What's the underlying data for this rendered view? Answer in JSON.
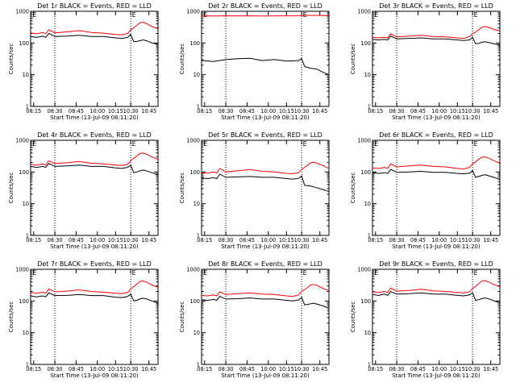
{
  "chart_data": [
    {
      "type": "line",
      "title": "Det 1r BLACK = Events, RED = LLD",
      "xlabel": "Start Time (13-Jul-09 08:11:20)",
      "ylabel": "Counts/sec",
      "scale": "log",
      "ylim": [
        1,
        1000
      ],
      "y_ticks": [
        "1",
        "10",
        "100",
        "1000"
      ],
      "x_ticks": [
        "08:15",
        "08:30",
        "08:45",
        "10:00",
        "10:15",
        "10:30",
        "10:45"
      ],
      "markers": [
        "E",
        "E"
      ],
      "vlines": [
        8,
        33
      ],
      "series": [
        {
          "name": "BLACK = Events",
          "color": "#000000",
          "x": [
            0,
            2,
            4,
            5,
            6,
            8,
            12,
            16,
            20,
            24,
            28,
            30,
            32,
            33,
            34,
            35,
            36,
            37,
            38,
            40,
            42
          ],
          "y": [
            160,
            150,
            165,
            150,
            200,
            160,
            165,
            175,
            160,
            160,
            145,
            140,
            150,
            185,
            110,
            112,
            118,
            125,
            120,
            100,
            90
          ]
        },
        {
          "name": "RED = LLD",
          "color": "#ff0000",
          "x": [
            0,
            2,
            4,
            5,
            6,
            8,
            12,
            16,
            20,
            24,
            28,
            30,
            32,
            33,
            34,
            35,
            36,
            37,
            38,
            40,
            42
          ],
          "y": [
            210,
            195,
            215,
            195,
            260,
            210,
            225,
            245,
            215,
            205,
            185,
            180,
            200,
            260,
            300,
            360,
            430,
            450,
            420,
            330,
            280
          ]
        }
      ]
    },
    {
      "type": "line",
      "title": "Det 2r BLACK = Events, RED = LLD",
      "xlabel": "Start Time (13-Jul-09 08:11:20)",
      "ylabel": "Counts/sec",
      "scale": "log",
      "ylim": [
        1,
        1000
      ],
      "y_ticks": [
        "1",
        "10",
        "100",
        "1000"
      ],
      "x_ticks": [
        "08:15",
        "08:30",
        "08:45",
        "10:00",
        "10:15",
        "10:30",
        "10:45"
      ],
      "markers": [
        "E",
        "E"
      ],
      "vlines": [
        8,
        33
      ],
      "series": [
        {
          "name": "BLACK = Events",
          "color": "#000000",
          "x": [
            0,
            4,
            8,
            12,
            16,
            20,
            24,
            28,
            32,
            33,
            34,
            36,
            38,
            40,
            42
          ],
          "y": [
            28,
            26,
            30,
            32,
            33,
            28,
            30,
            27,
            28,
            32,
            18,
            16,
            15,
            12,
            10
          ]
        },
        {
          "name": "RED = LLD",
          "color": "#ff0000",
          "x": [
            0,
            4,
            8,
            12,
            16,
            20,
            24,
            28,
            32,
            33,
            34,
            36,
            38,
            40,
            42
          ],
          "y": [
            720,
            710,
            720,
            715,
            720,
            710,
            715,
            720,
            720,
            730,
            740,
            745,
            740,
            735,
            730
          ]
        }
      ]
    },
    {
      "type": "line",
      "title": "Det 3r BLACK = Events, RED = LLD",
      "xlabel": "Start Time (13-Jul-09 08:11:20)",
      "ylabel": "Counts/sec",
      "scale": "log",
      "ylim": [
        1,
        1000
      ],
      "y_ticks": [
        "1",
        "10",
        "100",
        "1000"
      ],
      "x_ticks": [
        "08:15",
        "08:30",
        "08:45",
        "10:00",
        "10:15",
        "10:30",
        "10:45"
      ],
      "markers": [
        "E",
        "E"
      ],
      "vlines": [
        8,
        33
      ],
      "series": [
        {
          "name": "BLACK = Events",
          "color": "#000000",
          "x": [
            0,
            2,
            4,
            5,
            6,
            8,
            12,
            16,
            20,
            24,
            28,
            30,
            32,
            33,
            34,
            35,
            36,
            37,
            38,
            40,
            42
          ],
          "y": [
            130,
            125,
            130,
            125,
            165,
            135,
            140,
            145,
            135,
            135,
            125,
            120,
            125,
            150,
            95,
            98,
            105,
            110,
            105,
            95,
            85
          ]
        },
        {
          "name": "RED = LLD",
          "color": "#ff0000",
          "x": [
            0,
            2,
            4,
            5,
            6,
            8,
            12,
            16,
            20,
            24,
            28,
            30,
            32,
            33,
            34,
            35,
            36,
            37,
            38,
            40,
            42
          ],
          "y": [
            150,
            145,
            150,
            145,
            195,
            155,
            165,
            175,
            160,
            155,
            145,
            140,
            160,
            200,
            220,
            260,
            310,
            330,
            320,
            270,
            240
          ]
        }
      ]
    },
    {
      "type": "line",
      "title": "Det 4r BLACK = Events, RED = LLD",
      "xlabel": "Start Time (13-Jul-09 08:11:20)",
      "ylabel": "Counts/sec",
      "scale": "log",
      "ylim": [
        1,
        1000
      ],
      "y_ticks": [
        "1",
        "10",
        "100",
        "1000"
      ],
      "x_ticks": [
        "08:15",
        "08:30",
        "08:45",
        "10:00",
        "10:15",
        "10:30",
        "10:45"
      ],
      "markers": [
        "E",
        "E"
      ],
      "vlines": [
        8,
        33
      ],
      "series": [
        {
          "name": "BLACK = Events",
          "color": "#000000",
          "x": [
            0,
            2,
            4,
            5,
            6,
            8,
            12,
            16,
            20,
            24,
            28,
            30,
            32,
            33,
            34,
            35,
            36,
            37,
            38,
            40,
            42
          ],
          "y": [
            150,
            140,
            150,
            140,
            185,
            150,
            155,
            165,
            150,
            150,
            135,
            130,
            140,
            165,
            95,
            100,
            108,
            115,
            110,
            95,
            80
          ]
        },
        {
          "name": "RED = LLD",
          "color": "#ff0000",
          "x": [
            0,
            2,
            4,
            5,
            6,
            8,
            12,
            16,
            20,
            24,
            28,
            30,
            32,
            33,
            34,
            35,
            36,
            37,
            38,
            40,
            42
          ],
          "y": [
            175,
            165,
            180,
            165,
            225,
            185,
            195,
            215,
            190,
            180,
            165,
            160,
            175,
            230,
            270,
            320,
            380,
            400,
            370,
            300,
            250
          ]
        }
      ]
    },
    {
      "type": "line",
      "title": "Det 5r BLACK = Events, RED = LLD",
      "xlabel": "Start Time (13-Jul-09 08:11:20)",
      "ylabel": "Counts/sec",
      "scale": "log",
      "ylim": [
        1,
        1000
      ],
      "y_ticks": [
        "1",
        "10",
        "100",
        "1000"
      ],
      "x_ticks": [
        "08:15",
        "08:30",
        "08:45",
        "10:00",
        "10:15",
        "10:30",
        "10:45"
      ],
      "markers": [
        "E",
        "E"
      ],
      "vlines": [
        8,
        33
      ],
      "series": [
        {
          "name": "BLACK = Events",
          "color": "#000000",
          "x": [
            0,
            2,
            4,
            5,
            6,
            8,
            12,
            16,
            20,
            24,
            28,
            30,
            32,
            33,
            34,
            35,
            36,
            37,
            38,
            40,
            42
          ],
          "y": [
            65,
            62,
            66,
            62,
            85,
            68,
            70,
            72,
            68,
            68,
            62,
            60,
            63,
            75,
            38,
            37,
            36,
            34,
            32,
            28,
            24
          ]
        },
        {
          "name": "RED = LLD",
          "color": "#ff0000",
          "x": [
            0,
            2,
            4,
            5,
            6,
            8,
            12,
            16,
            20,
            24,
            28,
            30,
            32,
            33,
            34,
            35,
            36,
            37,
            38,
            40,
            42
          ],
          "y": [
            95,
            92,
            100,
            92,
            130,
            100,
            110,
            120,
            105,
            100,
            90,
            88,
            95,
            120,
            140,
            165,
            195,
            205,
            190,
            160,
            130
          ]
        }
      ]
    },
    {
      "type": "line",
      "title": "Det 6r BLACK = Events, RED = LLD",
      "xlabel": "Start Time (13-Jul-09 08:11:20)",
      "ylabel": "Counts/sec",
      "scale": "log",
      "ylim": [
        1,
        1000
      ],
      "y_ticks": [
        "1",
        "10",
        "100",
        "1000"
      ],
      "x_ticks": [
        "08:15",
        "08:30",
        "08:45",
        "10:00",
        "10:15",
        "10:30",
        "10:45"
      ],
      "markers": [
        "E",
        "E"
      ],
      "vlines": [
        8,
        33
      ],
      "series": [
        {
          "name": "BLACK = Events",
          "color": "#000000",
          "x": [
            0,
            2,
            4,
            5,
            6,
            8,
            12,
            16,
            20,
            24,
            28,
            30,
            32,
            33,
            34,
            35,
            36,
            37,
            38,
            40,
            42
          ],
          "y": [
            95,
            90,
            95,
            90,
            120,
            98,
            100,
            105,
            98,
            98,
            90,
            88,
            92,
            110,
            68,
            72,
            78,
            82,
            78,
            68,
            58
          ]
        },
        {
          "name": "RED = LLD",
          "color": "#ff0000",
          "x": [
            0,
            2,
            4,
            5,
            6,
            8,
            12,
            16,
            20,
            24,
            28,
            30,
            32,
            33,
            34,
            35,
            36,
            37,
            38,
            40,
            42
          ],
          "y": [
            135,
            130,
            140,
            130,
            180,
            145,
            155,
            165,
            150,
            145,
            130,
            125,
            140,
            180,
            210,
            250,
            290,
            300,
            280,
            230,
            190
          ]
        }
      ]
    },
    {
      "type": "line",
      "title": "Det 7r BLACK = Events, RED = LLD",
      "xlabel": "Start Time (13-Jul-09 08:11:20)",
      "ylabel": "Counts/sec",
      "scale": "log",
      "ylim": [
        1,
        1000
      ],
      "y_ticks": [
        "1",
        "10",
        "100",
        "1000"
      ],
      "x_ticks": [
        "08:15",
        "08:30",
        "08:45",
        "10:00",
        "10:15",
        "10:30",
        "10:45"
      ],
      "markers": [
        "E",
        "E"
      ],
      "vlines": [
        8,
        33
      ],
      "series": [
        {
          "name": "BLACK = Events",
          "color": "#000000",
          "x": [
            0,
            2,
            4,
            5,
            6,
            8,
            12,
            16,
            20,
            24,
            28,
            30,
            32,
            33,
            34,
            35,
            36,
            37,
            38,
            40,
            42
          ],
          "y": [
            145,
            135,
            145,
            135,
            180,
            148,
            150,
            160,
            148,
            148,
            132,
            128,
            138,
            165,
            100,
            105,
            115,
            122,
            118,
            100,
            85
          ]
        },
        {
          "name": "RED = LLD",
          "color": "#ff0000",
          "x": [
            0,
            2,
            4,
            5,
            6,
            8,
            12,
            16,
            20,
            24,
            28,
            30,
            32,
            33,
            34,
            35,
            36,
            37,
            38,
            40,
            42
          ],
          "y": [
            185,
            175,
            190,
            175,
            240,
            195,
            205,
            225,
            200,
            190,
            175,
            170,
            185,
            240,
            280,
            340,
            410,
            430,
            400,
            320,
            270
          ]
        }
      ]
    },
    {
      "type": "line",
      "title": "Det 8r BLACK = Events, RED = LLD",
      "xlabel": "Start Time (13-Jul-09 08:11:20)",
      "ylabel": "Counts/sec",
      "scale": "log",
      "ylim": [
        1,
        1000
      ],
      "y_ticks": [
        "1",
        "10",
        "100",
        "1000"
      ],
      "x_ticks": [
        "08:15",
        "08:30",
        "08:45",
        "10:00",
        "10:15",
        "10:30",
        "10:45"
      ],
      "markers": [
        "E",
        "E"
      ],
      "vlines": [
        8,
        33
      ],
      "series": [
        {
          "name": "BLACK = Events",
          "color": "#000000",
          "x": [
            0,
            2,
            4,
            5,
            6,
            8,
            12,
            16,
            20,
            24,
            28,
            30,
            32,
            33,
            34,
            35,
            36,
            37,
            38,
            40,
            42
          ],
          "y": [
            110,
            105,
            112,
            105,
            140,
            115,
            118,
            125,
            115,
            115,
            105,
            100,
            108,
            130,
            75,
            78,
            82,
            85,
            80,
            70,
            58
          ]
        },
        {
          "name": "RED = LLD",
          "color": "#ff0000",
          "x": [
            0,
            2,
            4,
            5,
            6,
            8,
            12,
            16,
            20,
            24,
            28,
            30,
            32,
            33,
            34,
            35,
            36,
            37,
            38,
            40,
            42
          ],
          "y": [
            150,
            145,
            155,
            145,
            195,
            160,
            170,
            180,
            165,
            160,
            145,
            140,
            155,
            200,
            230,
            270,
            320,
            330,
            310,
            250,
            210
          ]
        }
      ]
    },
    {
      "type": "line",
      "title": "Det 9r BLACK = Events, RED = LLD",
      "xlabel": "Start Time (13-Jul-09 08:11:20)",
      "ylabel": "Counts/sec",
      "scale": "log",
      "ylim": [
        1,
        1000
      ],
      "y_ticks": [
        "1",
        "10",
        "100",
        "1000"
      ],
      "x_ticks": [
        "08:15",
        "08:30",
        "08:45",
        "10:00",
        "10:15",
        "10:30",
        "10:45"
      ],
      "markers": [
        "E",
        "E"
      ],
      "vlines": [
        8,
        33
      ],
      "series": [
        {
          "name": "BLACK = Events",
          "color": "#000000",
          "x": [
            0,
            2,
            4,
            5,
            6,
            8,
            12,
            16,
            20,
            24,
            28,
            30,
            32,
            33,
            34,
            35,
            36,
            37,
            38,
            40,
            42
          ],
          "y": [
            160,
            150,
            165,
            150,
            200,
            165,
            170,
            180,
            165,
            165,
            150,
            145,
            155,
            180,
            105,
            110,
            118,
            125,
            120,
            102,
            88
          ]
        },
        {
          "name": "RED = LLD",
          "color": "#ff0000",
          "x": [
            0,
            2,
            4,
            5,
            6,
            8,
            12,
            16,
            20,
            24,
            28,
            30,
            32,
            33,
            34,
            35,
            36,
            37,
            38,
            40,
            42
          ],
          "y": [
            195,
            185,
            200,
            185,
            255,
            205,
            215,
            235,
            210,
            200,
            185,
            180,
            195,
            250,
            290,
            350,
            420,
            440,
            410,
            330,
            280
          ]
        }
      ]
    }
  ]
}
